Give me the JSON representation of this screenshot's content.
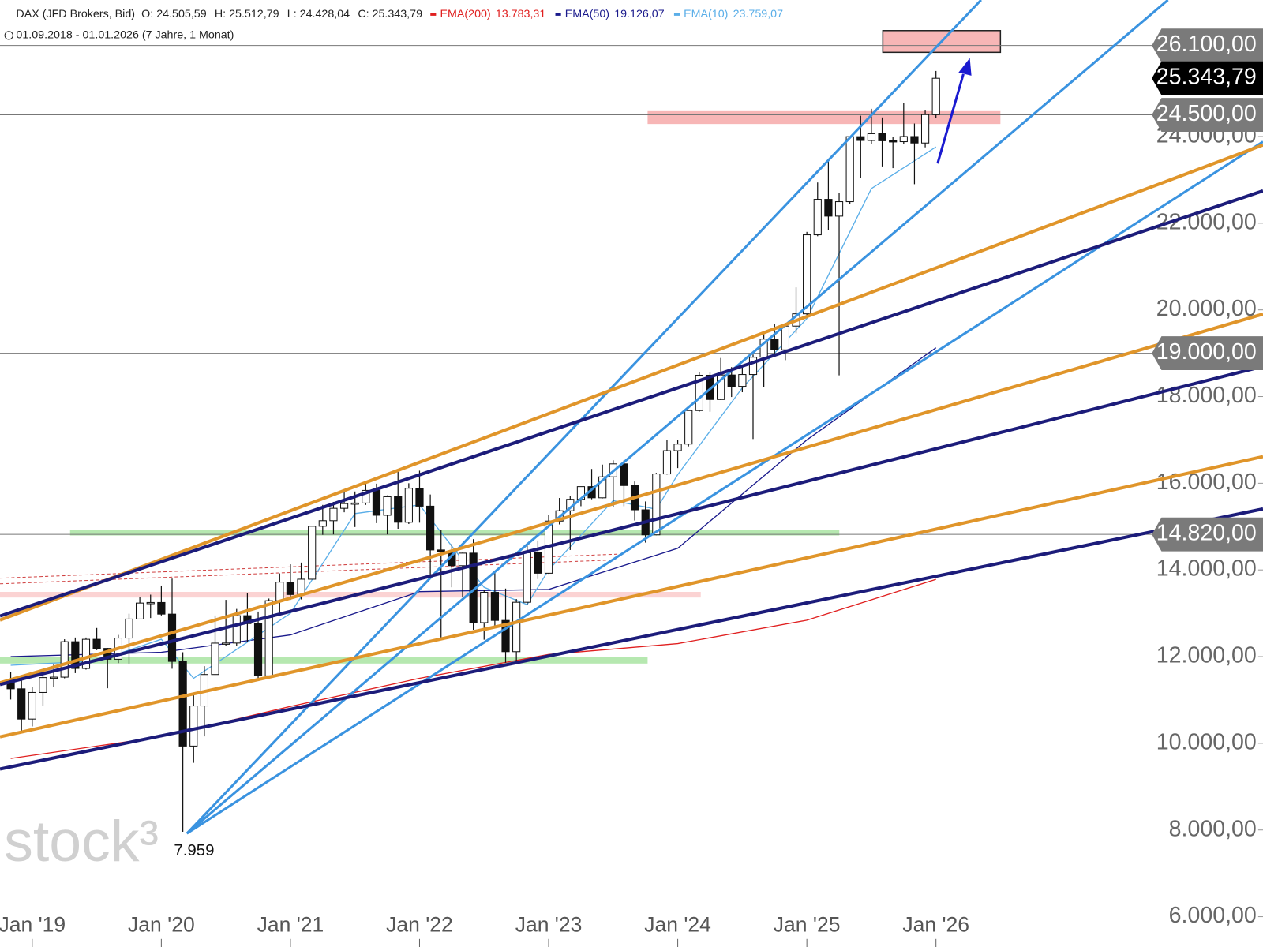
{
  "chart_data": {
    "type": "candlestick",
    "title": "DAX (JFD Brokers, Bid)",
    "ohlc_labels": [
      "O: 24.505,59",
      "H: 25.512,79",
      "L: 24.428,04",
      "C: 25.343,79"
    ],
    "subtitle": "01.09.2018 - 01.01.2026  (7 Jahre, 1 Monat)",
    "watermark": "stock³",
    "categories": [
      null,
      null,
      "Jan '19",
      null,
      null,
      null,
      null,
      null,
      null,
      null,
      null,
      null,
      null,
      null,
      "Jan '20",
      null,
      null,
      null,
      null,
      null,
      null,
      null,
      null,
      null,
      null,
      null,
      "Jan '21",
      null,
      null,
      null,
      null,
      null,
      null,
      null,
      null,
      null,
      null,
      null,
      "Jan '22",
      null,
      null,
      null,
      null,
      null,
      null,
      null,
      null,
      null,
      null,
      null,
      "Jan '23",
      null,
      null,
      null,
      null,
      null,
      null,
      null,
      null,
      null,
      null,
      null,
      "Jan '24",
      null,
      null,
      null,
      null,
      null,
      null,
      null,
      null,
      null,
      null,
      null,
      "Jan '25",
      null,
      null,
      null,
      null,
      null,
      null,
      null,
      null,
      null,
      null,
      null,
      "Jan '26"
    ],
    "open": [
      11450,
      11257,
      10559,
      11173,
      11516,
      11526,
      12344,
      11727,
      12399,
      12189,
      11939,
      12428,
      12867,
      13236,
      13249,
      12981,
      11890,
      9936,
      10862,
      11587,
      12311,
      12313,
      12945,
      12761,
      11556,
      13291,
      13719,
      13433,
      13786,
      15008,
      15136,
      15421,
      15531,
      15544,
      15835,
      15261,
      15689,
      15100,
      15885,
      15471,
      14461,
      14415,
      14098,
      14388,
      12784,
      13484,
      12835,
      12114,
      13254,
      14397,
      13924,
      15128,
      15365,
      15629,
      15922,
      15664,
      16148,
      16447,
      15947,
      15387,
      14810,
      16215,
      16752,
      16904,
      17678,
      18492,
      17932,
      18498,
      18235,
      18509,
      18907,
      19325,
      19078,
      19626,
      19909,
      21732,
      22551,
      22163,
      22497,
      23997,
      23909,
      24065,
      23902,
      23881,
      24000,
      23850,
      24505
    ],
    "high": [
      11650,
      11500,
      11300,
      11600,
      11820,
      12400,
      12440,
      12440,
      12660,
      12200,
      12500,
      12990,
      13370,
      13430,
      13640,
      13800,
      12100,
      11120,
      11780,
      12950,
      13310,
      13100,
      13460,
      13040,
      13340,
      13920,
      14130,
      14170,
      15010,
      15500,
      15570,
      15800,
      15810,
      16030,
      15990,
      15720,
      16290,
      16000,
      16290,
      15740,
      14920,
      14600,
      14400,
      14710,
      13530,
      13950,
      13570,
      13330,
      14600,
      14680,
      15270,
      15660,
      15710,
      15920,
      16330,
      16430,
      16530,
      16530,
      16040,
      15580,
      16240,
      17000,
      17000,
      17680,
      18570,
      18570,
      18890,
      18680,
      18700,
      18970,
      19500,
      19670,
      19700,
      20520,
      21800,
      22940,
      23480,
      22700,
      24000,
      24480,
      24640,
      24440,
      24000,
      24770,
      24300,
      24600,
      25512.79
    ],
    "low": [
      11010,
      10280,
      10390,
      10860,
      11300,
      11500,
      11620,
      11700,
      12150,
      11270,
      11850,
      11830,
      12860,
      12890,
      12950,
      11720,
      7959,
      9550,
      10160,
      11580,
      12250,
      12250,
      12340,
      11450,
      11550,
      12980,
      13310,
      13320,
      13780,
      14810,
      14820,
      15330,
      14990,
      15500,
      15080,
      14820,
      14950,
      15060,
      15090,
      13800,
      12440,
      13600,
      13380,
      12620,
      12390,
      12650,
      11860,
      11860,
      13200,
      13790,
      13910,
      15050,
      14460,
      15470,
      15630,
      15650,
      15450,
      15470,
      15140,
      14630,
      14800,
      16200,
      16350,
      16850,
      17650,
      17650,
      17920,
      17990,
      18100,
      17020,
      18210,
      18970,
      18840,
      19460,
      19860,
      21700,
      21840,
      18490,
      22450,
      23050,
      23830,
      23310,
      23270,
      23820,
      22900,
      23750,
      24428.04
    ],
    "close": [
      11257,
      10559,
      11173,
      11516,
      11526,
      12344,
      11727,
      12399,
      12189,
      11939,
      12428,
      12867,
      13236,
      13249,
      12981,
      11890,
      9936,
      10862,
      11587,
      12311,
      12313,
      12945,
      12761,
      11556,
      13291,
      13719,
      13433,
      13786,
      15008,
      15136,
      15421,
      15531,
      15544,
      15835,
      15261,
      15689,
      15100,
      15885,
      15471,
      14461,
      14415,
      14098,
      14388,
      12784,
      13484,
      12835,
      12114,
      13254,
      14397,
      13924,
      15128,
      15365,
      15629,
      15922,
      15664,
      16148,
      16447,
      15947,
      15387,
      14810,
      16215,
      16752,
      16904,
      17678,
      18492,
      17932,
      18498,
      18235,
      18509,
      18907,
      19325,
      19078,
      19626,
      19909,
      21732,
      22551,
      22163,
      22497,
      23997,
      23909,
      24065,
      23902,
      23881,
      24000,
      23850,
      24505,
      25343.79
    ],
    "low_label": "7.959",
    "indicators": [
      {
        "name": "EMA(200)",
        "color": "#e02020",
        "value_label": "13.783,31",
        "x": [
          0,
          14,
          26,
          38,
          50,
          62,
          74,
          86
        ],
        "values": [
          9650,
          10150,
          10850,
          11500,
          12050,
          12300,
          12840,
          13783.31
        ]
      },
      {
        "name": "EMA(50)",
        "color": "#1a1a8c",
        "value_label": "19.126,07",
        "x": [
          0,
          14,
          26,
          38,
          50,
          62,
          74,
          86
        ],
        "values": [
          12000,
          12100,
          12500,
          13500,
          13550,
          14500,
          17000,
          19126.07
        ]
      },
      {
        "name": "EMA(10)",
        "color": "#5aaee8",
        "value_label": "23.759,07",
        "x": [
          0,
          8,
          14,
          17,
          20,
          26,
          32,
          38,
          44,
          48,
          50,
          56,
          60,
          62,
          68,
          74,
          80,
          86
        ],
        "values": [
          11800,
          11900,
          12400,
          11500,
          12000,
          13000,
          15300,
          15500,
          13600,
          13200,
          14000,
          15600,
          15400,
          16200,
          18200,
          19800,
          22800,
          23759.07
        ]
      }
    ],
    "ylim": [
      5300,
      27150
    ],
    "yticks": [
      {
        "value": 6000,
        "label": "6.000,00"
      },
      {
        "value": 8000,
        "label": "8.000,00"
      },
      {
        "value": 10000,
        "label": "10.000,00"
      },
      {
        "value": 12000,
        "label": "12.000,00"
      },
      {
        "value": 14000,
        "label": "14.000,00"
      },
      {
        "value": 16000,
        "label": "16.000,00"
      },
      {
        "value": 18000,
        "label": "18.000,00"
      },
      {
        "value": 20000,
        "label": "20.000,00"
      },
      {
        "value": 22000,
        "label": "22.000,00"
      },
      {
        "value": 24000,
        "label": "24.000,00"
      }
    ],
    "levels": [
      {
        "value": 26100,
        "label": "26.100,00"
      },
      {
        "value": 24500,
        "label": "24.500,00"
      },
      {
        "value": 19000,
        "label": "19.000,00"
      },
      {
        "value": 14820,
        "label": "14.820,00"
      }
    ],
    "last_price": {
      "value": 25343.79,
      "label": "25.343,79"
    }
  }
}
